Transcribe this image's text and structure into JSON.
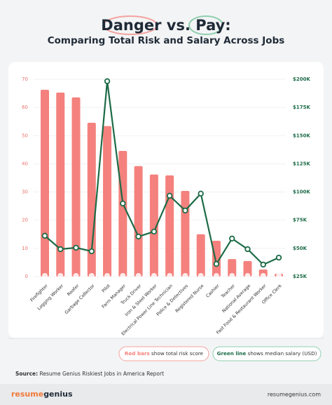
{
  "chart_data": {
    "type": "bar_line",
    "title": "Danger vs. Pay:",
    "subtitle": "Comparing Total Risk and Salary Across Jobs",
    "categories": [
      "Firefighter",
      "Logging Worker",
      "Roofer",
      "Garbage Collector",
      "Pilot",
      "Farm Manager",
      "Truck Driver",
      "Iron & Steel Worker",
      "Electrical Power Line Technician",
      "Police & Detectives",
      "Registered Nurse",
      "Cashier",
      "Teacher",
      "National Average",
      "Fast Food & Restaurant Worker",
      "Office Clerk"
    ],
    "series": [
      {
        "name": "Red bars show total risk score",
        "color": "#f4817d",
        "type": "bar",
        "values": [
          66.3,
          65.3,
          63.6,
          54.6,
          53.4,
          44.6,
          39.2,
          36.2,
          35.9,
          30.4,
          15,
          12.7,
          6.2,
          5.5,
          2.5,
          1
        ]
      },
      {
        "name": "Green line shows median salary (USD)",
        "color": "#1d6b47",
        "type": "line",
        "axis": "y2",
        "values": [
          61200,
          49300,
          50600,
          47400,
          198300,
          89800,
          60500,
          64900,
          96700,
          83600,
          98600,
          36200,
          58700,
          49300,
          35600,
          41800
        ]
      }
    ],
    "ylim": [
      0,
      70
    ],
    "yticks": [
      0,
      10,
      20,
      30,
      40,
      50,
      60,
      70
    ],
    "y2lim": [
      25000,
      200000
    ],
    "y2ticks": [
      {
        "value": 25000,
        "label": "$25K"
      },
      {
        "value": 50000,
        "label": "$50K"
      },
      {
        "value": 75000,
        "label": "$75K"
      },
      {
        "value": 100000,
        "label": "$100K"
      },
      {
        "value": 125000,
        "label": "$125K"
      },
      {
        "value": 150000,
        "label": "$150K"
      },
      {
        "value": 175000,
        "label": "$175K"
      },
      {
        "value": 200000,
        "label": "$200K"
      }
    ],
    "grid": true,
    "source_label": "Source:",
    "source": "Resume Genius Riskiest Jobs in America Report"
  },
  "footer": {
    "logo_a": "resume",
    "logo_b": "genius",
    "url": "resumegenius.com"
  }
}
